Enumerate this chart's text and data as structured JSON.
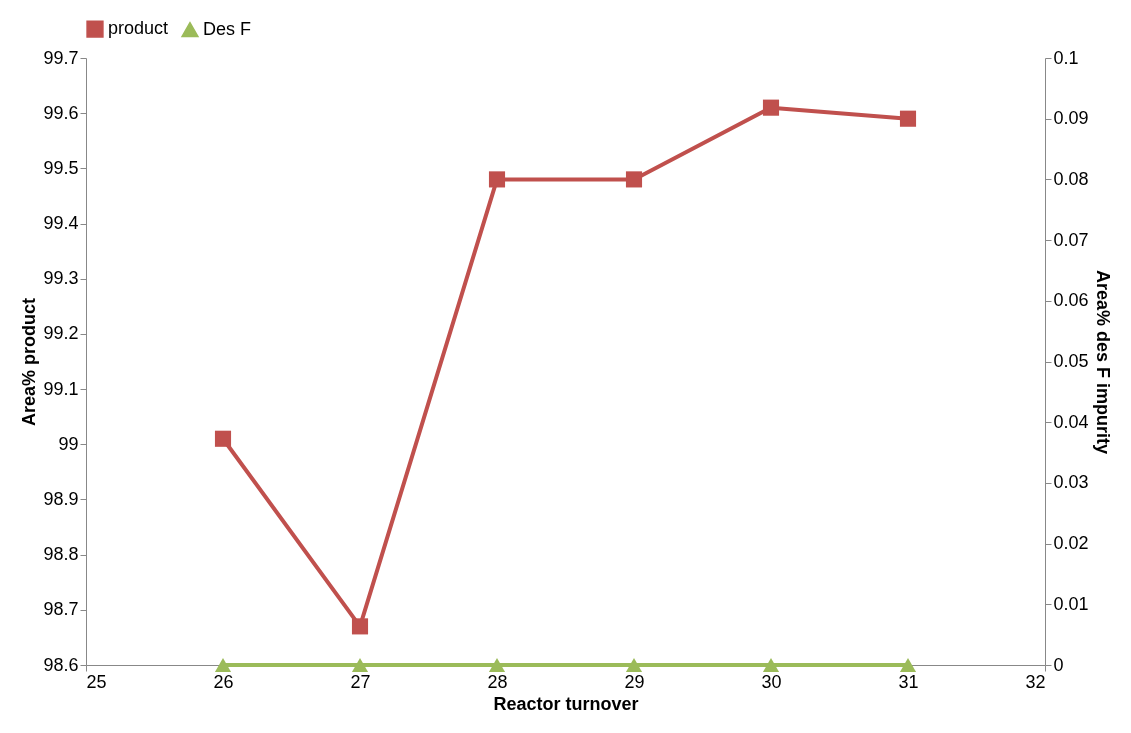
{
  "chart_data": {
    "type": "line",
    "xlabel": "Reactor turnover",
    "ylabel": "Area% product",
    "y2label": "Area% des F impurity",
    "x": [
      26,
      27,
      28,
      29,
      30,
      31
    ],
    "series": [
      {
        "name": "product",
        "color": "#c0504d",
        "marker": "square",
        "values": [
          99.01,
          98.67,
          99.48,
          99.48,
          99.61,
          99.59
        ]
      },
      {
        "name": "Des F",
        "color": "#9bbb59",
        "marker": "triangle",
        "axis": "y2",
        "values": [
          0,
          0,
          0,
          0,
          0,
          0
        ]
      }
    ],
    "xlim": [
      25,
      32
    ],
    "xticks": [
      25,
      26,
      27,
      28,
      29,
      30,
      31,
      32
    ],
    "ylim": [
      98.6,
      99.7
    ],
    "yticks": [
      98.6,
      98.7,
      98.8,
      98.9,
      99,
      99.1,
      99.2,
      99.3,
      99.4,
      99.5,
      99.6,
      99.7
    ],
    "y2lim": [
      0,
      0.1
    ],
    "y2ticks": [
      0,
      0.01,
      0.02,
      0.03,
      0.04,
      0.05,
      0.06,
      0.07,
      0.08,
      0.09,
      0.1
    ],
    "grid": false,
    "legend": "top",
    "line_style": "solid"
  }
}
